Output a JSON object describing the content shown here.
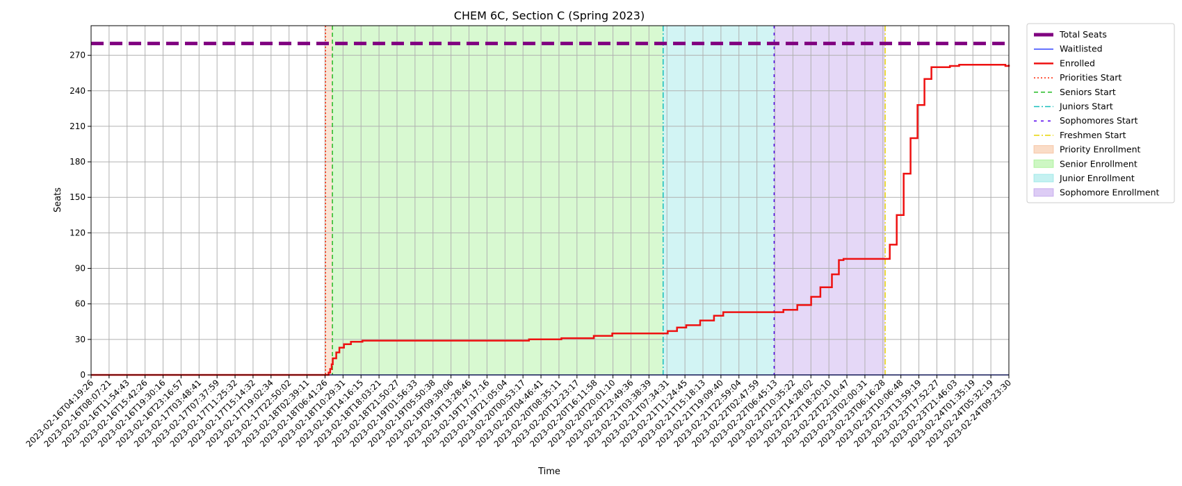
{
  "chart_data": {
    "type": "line",
    "title": "CHEM 6C, Section C (Spring 2023)",
    "xlabel": "Time",
    "ylabel": "Seats",
    "ylim": [
      0,
      295
    ],
    "grid": true,
    "legend_placement": "outside-right-top",
    "x_start": "2023-02-16T04:19:26",
    "x_end": "2023-02-24T10:45:00",
    "x_ticks": [
      "2023-02-16T04:19:26",
      "2023-02-16T08:07:21",
      "2023-02-16T11:54:43",
      "2023-02-16T15:42:26",
      "2023-02-16T19:30:16",
      "2023-02-16T23:16:57",
      "2023-02-17T03:48:41",
      "2023-02-17T07:37:59",
      "2023-02-17T11:25:32",
      "2023-02-17T15:14:32",
      "2023-02-17T19:02:34",
      "2023-02-17T22:50:02",
      "2023-02-18T02:39:11",
      "2023-02-18T06:41:26",
      "2023-02-18T10:29:31",
      "2023-02-18T14:16:15",
      "2023-02-18T18:03:21",
      "2023-02-18T21:50:27",
      "2023-02-19T01:56:33",
      "2023-02-19T05:50:38",
      "2023-02-19T09:39:06",
      "2023-02-19T13:28:46",
      "2023-02-19T17:17:16",
      "2023-02-19T21:05:04",
      "2023-02-20T00:53:17",
      "2023-02-20T04:46:41",
      "2023-02-20T08:35:11",
      "2023-02-20T12:23:17",
      "2023-02-20T16:11:58",
      "2023-02-20T20:01:10",
      "2023-02-20T23:49:36",
      "2023-02-21T03:38:39",
      "2023-02-21T07:34:31",
      "2023-02-21T11:24:45",
      "2023-02-21T15:18:13",
      "2023-02-21T19:09:40",
      "2023-02-21T22:59:04",
      "2023-02-22T02:47:59",
      "2023-02-22T06:45:13",
      "2023-02-22T10:35:22",
      "2023-02-22T14:28:02",
      "2023-02-22T18:20:10",
      "2023-02-22T22:10:47",
      "2023-02-23T02:00:31",
      "2023-02-23T06:16:28",
      "2023-02-23T10:06:48",
      "2023-02-23T13:59:19",
      "2023-02-23T17:52:27",
      "2023-02-23T21:46:03",
      "2023-02-24T01:35:19",
      "2023-02-24T05:32:19",
      "2023-02-24T09:23:30"
    ],
    "y_ticks": [
      0,
      30,
      60,
      90,
      120,
      150,
      180,
      210,
      240,
      270
    ],
    "total_seats": 280,
    "phases": [
      {
        "name": "Priority Enrollment",
        "start": "2023-02-18T07:00:00",
        "end": "2023-02-18T08:30:00",
        "color": "#f4b183"
      },
      {
        "name": "Senior Enrollment",
        "start": "2023-02-18T08:30:00",
        "end": "2023-02-21T08:00:00",
        "color": "#90ee7a"
      },
      {
        "name": "Junior Enrollment",
        "start": "2023-02-21T08:00:00",
        "end": "2023-02-22T08:00:00",
        "color": "#7fe0e0"
      },
      {
        "name": "Sophomore Enrollment",
        "start": "2023-02-22T08:00:00",
        "end": "2023-02-23T08:00:00",
        "color": "#b48ee8"
      }
    ],
    "markers": [
      {
        "name": "Priorities Start",
        "time": "2023-02-18T07:00:00",
        "color": "#ff2200",
        "dash": "2,3"
      },
      {
        "name": "Seniors Start",
        "time": "2023-02-18T08:30:00",
        "color": "#22bb22",
        "dash": "6,4"
      },
      {
        "name": "Juniors Start",
        "time": "2023-02-21T08:00:00",
        "color": "#17bebb",
        "dash": "8,3,2,3"
      },
      {
        "name": "Sophomores Start",
        "time": "2023-02-22T08:00:00",
        "color": "#5500ee",
        "dash": "4,6"
      },
      {
        "name": "Freshmen Start",
        "time": "2023-02-23T08:00:00",
        "color": "#e8d400",
        "dash": "8,3,2,3"
      }
    ],
    "series": [
      {
        "name": "Total Seats",
        "color": "#800080",
        "values": [
          [
            "2023-02-16T04:19:26",
            280
          ],
          [
            "2023-02-24T10:45:00",
            280
          ]
        ]
      },
      {
        "name": "Waitlisted",
        "color": "#3344ff",
        "values": [
          [
            "2023-02-16T04:19:26",
            0
          ],
          [
            "2023-02-24T10:45:00",
            0
          ]
        ]
      },
      {
        "name": "Enrolled",
        "color": "#ee1111",
        "values": [
          [
            "2023-02-16T04:19:26",
            0
          ],
          [
            "2023-02-18T07:00:00",
            0
          ],
          [
            "2023-02-18T07:40:00",
            2
          ],
          [
            "2023-02-18T08:00:00",
            5
          ],
          [
            "2023-02-18T08:20:00",
            9
          ],
          [
            "2023-02-18T08:35:00",
            14
          ],
          [
            "2023-02-18T09:20:00",
            19
          ],
          [
            "2023-02-18T10:00:00",
            23
          ],
          [
            "2023-02-18T11:00:00",
            26
          ],
          [
            "2023-02-18T12:30:00",
            28
          ],
          [
            "2023-02-18T15:00:00",
            29
          ],
          [
            "2023-02-19T20:00:00",
            29
          ],
          [
            "2023-02-20T03:00:00",
            30
          ],
          [
            "2023-02-20T10:00:00",
            31
          ],
          [
            "2023-02-20T17:00:00",
            33
          ],
          [
            "2023-02-20T21:00:00",
            35
          ],
          [
            "2023-02-21T08:00:00",
            35
          ],
          [
            "2023-02-21T09:00:00",
            37
          ],
          [
            "2023-02-21T11:00:00",
            40
          ],
          [
            "2023-02-21T13:00:00",
            42
          ],
          [
            "2023-02-21T16:00:00",
            46
          ],
          [
            "2023-02-21T19:00:00",
            50
          ],
          [
            "2023-02-21T21:00:00",
            53
          ],
          [
            "2023-02-22T08:00:00",
            53
          ],
          [
            "2023-02-22T10:00:00",
            55
          ],
          [
            "2023-02-22T13:00:00",
            59
          ],
          [
            "2023-02-22T16:00:00",
            66
          ],
          [
            "2023-02-22T18:00:00",
            74
          ],
          [
            "2023-02-22T20:30:00",
            85
          ],
          [
            "2023-02-22T22:00:00",
            97
          ],
          [
            "2023-02-22T23:00:00",
            98
          ],
          [
            "2023-02-23T08:00:00",
            98
          ],
          [
            "2023-02-23T09:00:00",
            110
          ],
          [
            "2023-02-23T10:30:00",
            135
          ],
          [
            "2023-02-23T12:00:00",
            170
          ],
          [
            "2023-02-23T13:30:00",
            200
          ],
          [
            "2023-02-23T15:00:00",
            228
          ],
          [
            "2023-02-23T16:30:00",
            250
          ],
          [
            "2023-02-23T18:00:00",
            260
          ],
          [
            "2023-02-23T22:00:00",
            261
          ],
          [
            "2023-02-24T00:00:00",
            262
          ],
          [
            "2023-02-24T09:30:00",
            262
          ],
          [
            "2023-02-24T10:00:00",
            261
          ],
          [
            "2023-02-24T10:45:00",
            262
          ]
        ]
      }
    ],
    "legend": [
      "Total Seats",
      "Waitlisted",
      "Enrolled",
      "Priorities Start",
      "Seniors Start",
      "Juniors Start",
      "Sophomores Start",
      "Freshmen Start",
      "Priority Enrollment",
      "Senior Enrollment",
      "Junior Enrollment",
      "Sophomore Enrollment"
    ]
  }
}
